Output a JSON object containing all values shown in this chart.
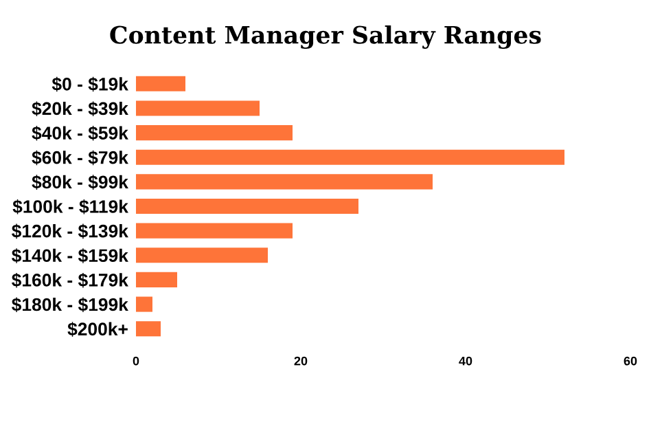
{
  "chart_data": {
    "type": "bar",
    "orientation": "horizontal",
    "title": "Content Manager Salary Ranges",
    "categories": [
      "$0 - $19k",
      "$20k - $39k",
      "$40k - $59k",
      "$60k - $79k",
      "$80k - $99k",
      "$100k - $119k",
      "$120k - $139k",
      "$140k - $159k",
      "$160k - $179k",
      "$180k - $199k",
      "$200k+"
    ],
    "values": [
      6,
      15,
      19,
      52,
      36,
      27,
      19,
      16,
      5,
      2,
      3
    ],
    "color": "#fe7439",
    "xlim": [
      0,
      60
    ],
    "xticks": [
      0,
      20,
      40,
      60
    ],
    "grid": false
  }
}
